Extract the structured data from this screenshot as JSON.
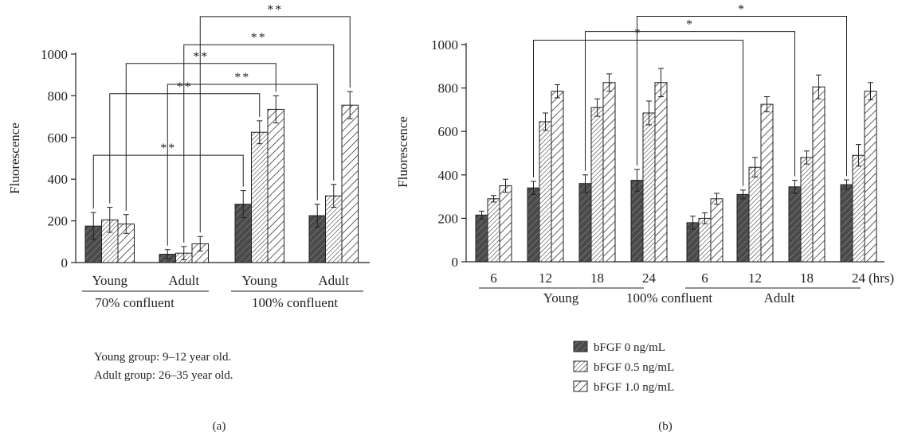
{
  "legend": {
    "entries": [
      "bFGF 0 ng/mL",
      "bFGF 0.5 ng/mL",
      "bFGF 1.0 ng/mL"
    ]
  },
  "colors": {
    "ink": "#231f20",
    "series_fill": [
      "#4a4a4a",
      "#ffffff",
      "#ffffff"
    ]
  },
  "chart_data": [
    {
      "id": "a",
      "type": "bar",
      "panel_label": "(a)",
      "ylabel": "Fluorescence",
      "ylim": [
        0,
        1000
      ],
      "yticks": [
        0,
        200,
        400,
        600,
        800,
        1000
      ],
      "categories": [
        "Young",
        "Adult",
        "Young",
        "Adult"
      ],
      "group_labels": [
        "70% confluent",
        "100% confluent"
      ],
      "series": [
        {
          "name": "bFGF 0 ng/mL",
          "values": [
            175,
            40,
            280,
            225
          ],
          "errors": [
            65,
            22,
            65,
            55
          ]
        },
        {
          "name": "bFGF 0.5 ng/mL",
          "values": [
            205,
            45,
            625,
            320
          ],
          "errors": [
            60,
            32,
            55,
            55
          ]
        },
        {
          "name": "bFGF 1.0 ng/mL",
          "values": [
            185,
            90,
            735,
            755
          ],
          "errors": [
            45,
            35,
            65,
            65
          ]
        }
      ],
      "significance": [
        {
          "label": "**",
          "from": [
            0,
            0
          ],
          "to": [
            2,
            0
          ],
          "y": 515
        },
        {
          "label": "**",
          "from": [
            0,
            1
          ],
          "to": [
            2,
            1
          ],
          "y": 810
        },
        {
          "label": "**",
          "from": [
            0,
            2
          ],
          "to": [
            2,
            2
          ],
          "y": 955
        },
        {
          "label": "**",
          "from": [
            1,
            0
          ],
          "to": [
            3,
            0
          ],
          "y": 855
        },
        {
          "label": "**",
          "from": [
            1,
            1
          ],
          "to": [
            3,
            1
          ],
          "y": 1045
        },
        {
          "label": "**",
          "from": [
            1,
            2
          ],
          "to": [
            3,
            2
          ],
          "y": 1180
        }
      ],
      "notes": [
        "Young group: 9–12 year old.",
        "Adult group: 26–35 year old."
      ]
    },
    {
      "id": "b",
      "type": "bar",
      "panel_label": "(b)",
      "ylabel": "Fluorescence",
      "ylim": [
        0,
        1000
      ],
      "yticks": [
        0,
        200,
        400,
        600,
        800,
        1000
      ],
      "categories": [
        "6",
        "12",
        "18",
        "24",
        "6",
        "12",
        "18",
        "24"
      ],
      "x_unit": "(hrs)",
      "group_labels": [
        "Young",
        "100% confluent",
        "Adult"
      ],
      "series": [
        {
          "name": "bFGF 0 ng/mL",
          "values": [
            215,
            340,
            360,
            375,
            180,
            310,
            345,
            355
          ],
          "errors": [
            18,
            30,
            40,
            50,
            30,
            20,
            30,
            22
          ]
        },
        {
          "name": "bFGF 0.5 ng/mL",
          "values": [
            290,
            645,
            710,
            685,
            200,
            435,
            480,
            490
          ],
          "errors": [
            15,
            40,
            40,
            55,
            25,
            45,
            30,
            50
          ]
        },
        {
          "name": "bFGF 1.0 ng/mL",
          "values": [
            350,
            785,
            825,
            825,
            290,
            725,
            805,
            785
          ],
          "errors": [
            30,
            30,
            40,
            65,
            25,
            35,
            55,
            40
          ]
        }
      ],
      "significance": [
        {
          "label": "*",
          "from": [
            1,
            0
          ],
          "to": [
            5,
            0
          ],
          "y": 1020
        },
        {
          "label": "*",
          "from": [
            2,
            0
          ],
          "to": [
            6,
            0
          ],
          "y": 1060
        },
        {
          "label": "*",
          "from": [
            3,
            0
          ],
          "to": [
            7,
            0
          ],
          "y": 1130
        }
      ]
    }
  ]
}
